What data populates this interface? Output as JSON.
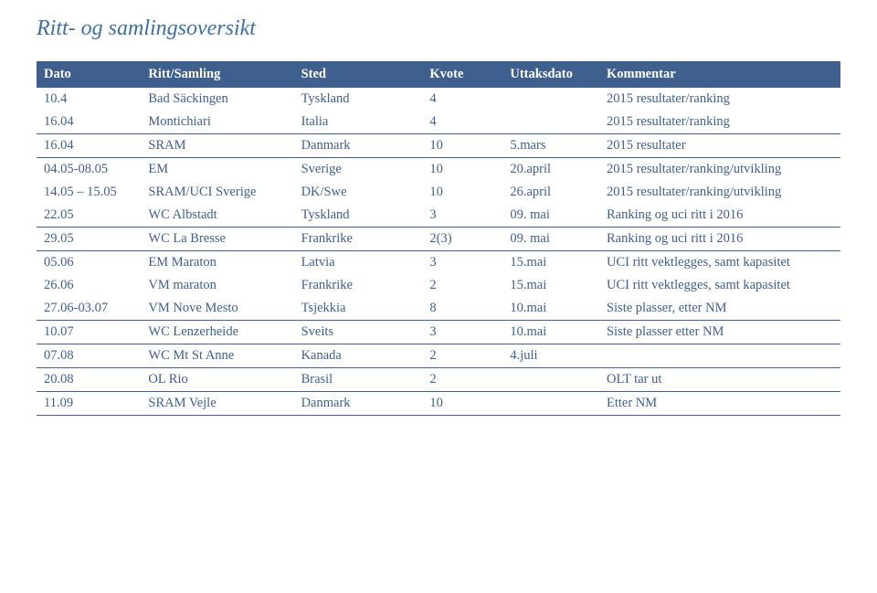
{
  "title": "Ritt- og samlingsoversikt",
  "title_color": "#3E6FA2",
  "header_bg": "#3F5F8E",
  "header_text_color": "#ffffff",
  "border_color": "#3F5F8E",
  "row_text_color": "#3F5F8E",
  "columns": {
    "dato": "Dato",
    "ritt": "Ritt/Samling",
    "sted": "Sted",
    "kvote": "Kvote",
    "uttak": "Uttaksdato",
    "kommentar": "Kommentar"
  },
  "rows": [
    {
      "dato": "10.4",
      "ritt": "Bad Säckingen",
      "sted": "Tyskland",
      "kvote": "4",
      "uttak": "",
      "kommentar": "2015 resultater/ranking",
      "section_end": false
    },
    {
      "dato": "16.04",
      "ritt": "Montichiari",
      "sted": "Italia",
      "kvote": "4",
      "uttak": "",
      "kommentar": "2015 resultater/ranking",
      "section_end": true
    },
    {
      "dato": "16.04",
      "ritt": "SRAM",
      "sted": "Danmark",
      "kvote": "10",
      "uttak": "5.mars",
      "kommentar": "2015 resultater",
      "section_end": true
    },
    {
      "dato": "04.05-08.05",
      "ritt": "EM",
      "sted": "Sverige",
      "kvote": "10",
      "uttak": "20.april",
      "kommentar": "2015 resultater/ranking/utvikling",
      "section_end": false
    },
    {
      "dato": "14.05 – 15.05",
      "ritt": "SRAM/UCI Sverige",
      "sted": "DK/Swe",
      "kvote": "10",
      "uttak": "26.april",
      "kommentar": "2015 resultater/ranking/utvikling",
      "section_end": false
    },
    {
      "dato": "22.05",
      "ritt": "WC Albstadt",
      "sted": "Tyskland",
      "kvote": "3",
      "uttak": "09. mai",
      "kommentar": "Ranking og uci ritt i 2016",
      "section_end": true
    },
    {
      "dato": "29.05",
      "ritt": "WC La Bresse",
      "sted": "Frankrike",
      "kvote": "2(3)",
      "uttak": "09. mai",
      "kommentar": "Ranking og uci ritt i 2016",
      "section_end": true
    },
    {
      "dato": "05.06",
      "ritt": "EM Maraton",
      "sted": "Latvia",
      "kvote": "3",
      "uttak": "15.mai",
      "kommentar": "UCI ritt vektlegges, samt kapasitet",
      "section_end": false
    },
    {
      "dato": "26.06",
      "ritt": "VM maraton",
      "sted": "Frankrike",
      "kvote": "2",
      "uttak": "15.mai",
      "kommentar": "UCI ritt vektlegges, samt kapasitet",
      "section_end": false
    },
    {
      "dato": "27.06-03.07",
      "ritt": "VM Nove Mesto",
      "sted": "Tsjekkia",
      "kvote": "8",
      "uttak": "10.mai",
      "kommentar": "Siste plasser, etter NM",
      "section_end": true
    },
    {
      "dato": "10.07",
      "ritt": "WC Lenzerheide",
      "sted": "Sveits",
      "kvote": "3",
      "uttak": "10.mai",
      "kommentar": "Siste plasser etter NM",
      "section_end": true
    },
    {
      "dato": "07.08",
      "ritt": "WC Mt St Anne",
      "sted": "Kanada",
      "kvote": "2",
      "uttak": "4.juli",
      "kommentar": "",
      "section_end": true
    },
    {
      "dato": "20.08",
      "ritt": "OL Rio",
      "sted": "Brasil",
      "kvote": "2",
      "uttak": "",
      "kommentar": "OLT tar ut",
      "section_end": true
    },
    {
      "dato": "11.09",
      "ritt": "SRAM Vejle",
      "sted": "Danmark",
      "kvote": "10",
      "uttak": "",
      "kommentar": "Etter NM",
      "section_end": true
    }
  ]
}
